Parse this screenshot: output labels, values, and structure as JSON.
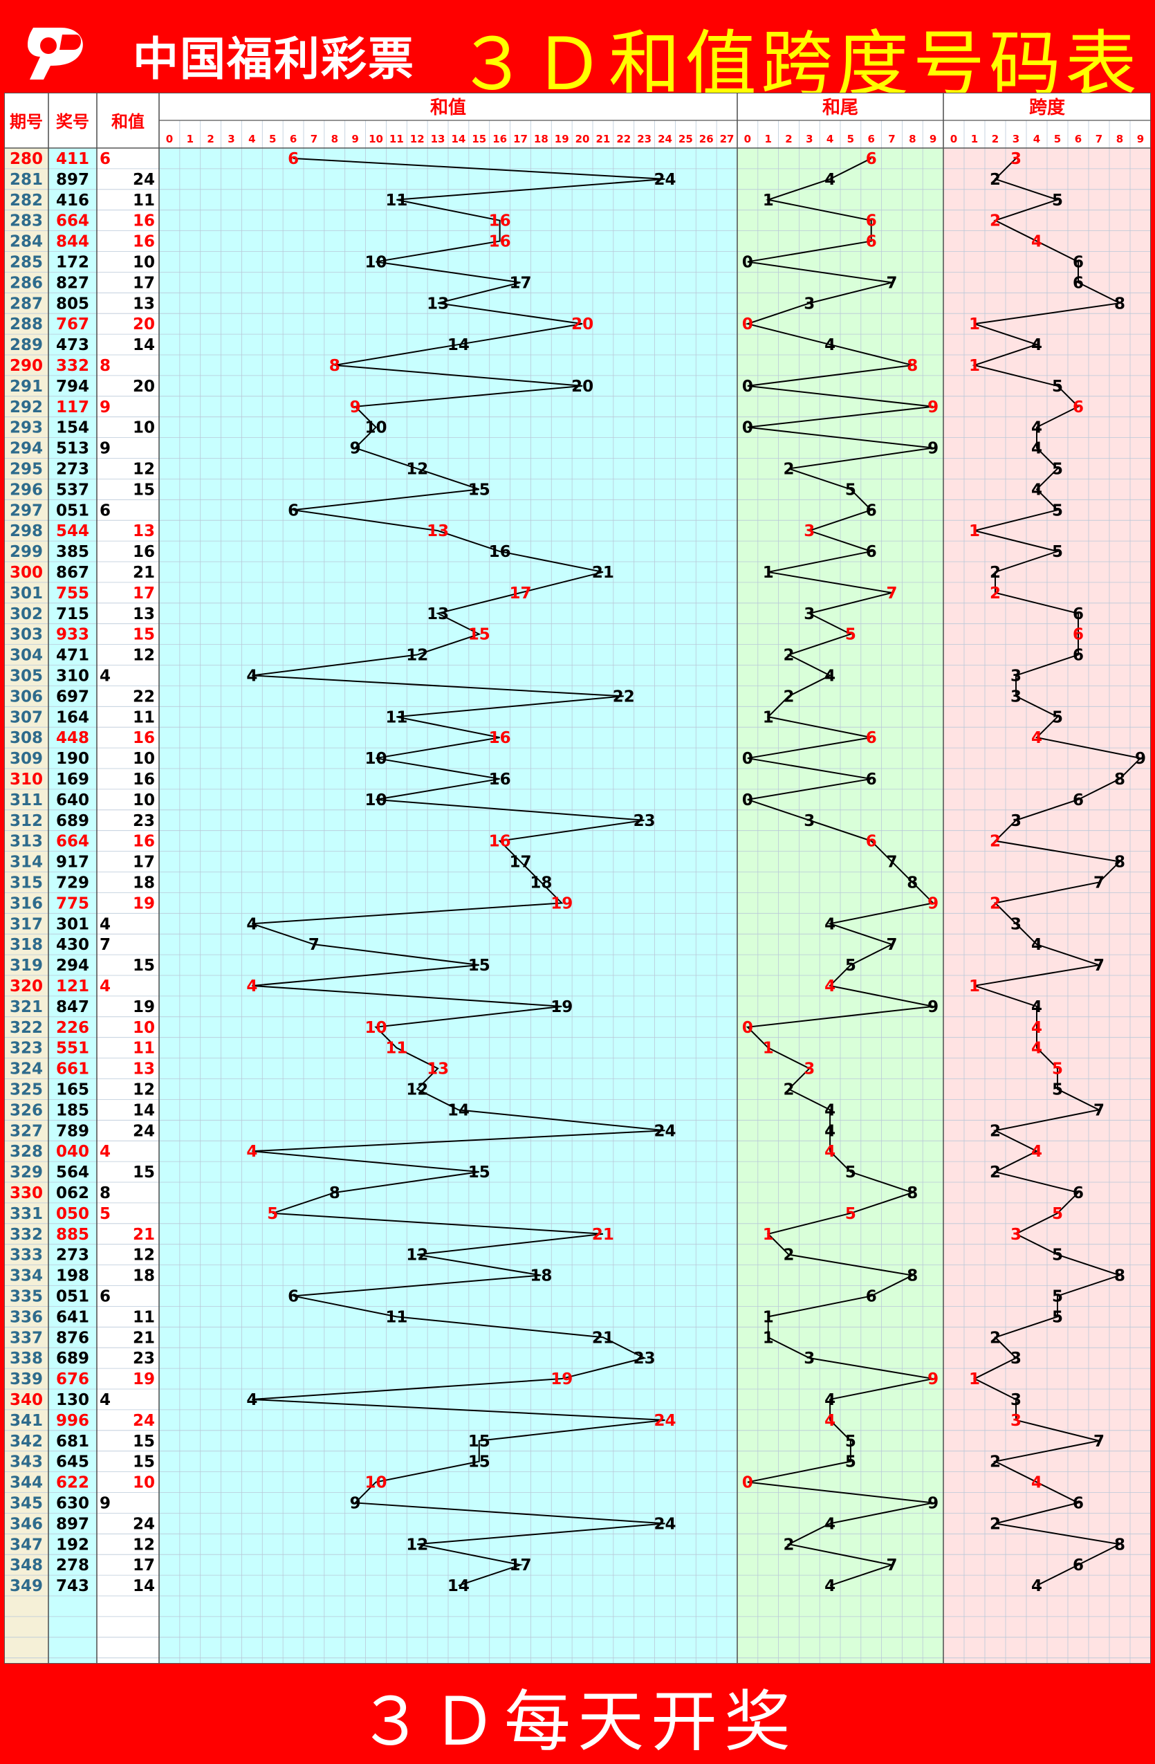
{
  "header": {
    "brand": "中国福利彩票",
    "title": "３Ｄ和值跨度号码表"
  },
  "footer": {
    "text": "３Ｄ每天开奖"
  },
  "colors": {
    "background": "#ff0000",
    "title": "#ffff00",
    "highlight": "#ff0000",
    "normal": "#000000",
    "issue_normal": "#2e6b8c",
    "zone_issue": "#f5f0d7",
    "zone_number": "#c8ffff",
    "zone_sum": "#c8ffff",
    "zone_tail": "#d9ffd9",
    "zone_span": "#ffe3e3"
  },
  "table": {
    "col_labels": [
      "期号",
      "奖号",
      "和值"
    ],
    "zone_labels": [
      "和值",
      "和尾",
      "跨度"
    ]
  },
  "chart_data": {
    "type": "table",
    "sum_range": [
      0,
      27
    ],
    "tail_range": [
      0,
      9
    ],
    "span_range": [
      0,
      9
    ],
    "sum_ticks": [
      "0",
      "1",
      "2",
      "3",
      "4",
      "5",
      "6",
      "7",
      "8",
      "9",
      "10",
      "11",
      "12",
      "13",
      "14",
      "15",
      "16",
      "17",
      "18",
      "19",
      "20",
      "21",
      "22",
      "23",
      "24",
      "25",
      "26",
      "27"
    ],
    "digit_ticks": [
      "0",
      "1",
      "2",
      "3",
      "4",
      "5",
      "6",
      "7",
      "8",
      "9"
    ],
    "rows": [
      {
        "issue": "280",
        "number": "411",
        "sum": "6",
        "tail": "6",
        "span": "3",
        "hot": true,
        "red_issue": true
      },
      {
        "issue": "281",
        "number": "897",
        "sum": "24",
        "tail": "4",
        "span": "2",
        "hot": false,
        "red_issue": false
      },
      {
        "issue": "282",
        "number": "416",
        "sum": "11",
        "tail": "1",
        "span": "5",
        "hot": false,
        "red_issue": false
      },
      {
        "issue": "283",
        "number": "664",
        "sum": "16",
        "tail": "6",
        "span": "2",
        "hot": true,
        "red_issue": false
      },
      {
        "issue": "284",
        "number": "844",
        "sum": "16",
        "tail": "6",
        "span": "4",
        "hot": true,
        "red_issue": false
      },
      {
        "issue": "285",
        "number": "172",
        "sum": "10",
        "tail": "0",
        "span": "6",
        "hot": false,
        "red_issue": false
      },
      {
        "issue": "286",
        "number": "827",
        "sum": "17",
        "tail": "7",
        "span": "6",
        "hot": false,
        "red_issue": false
      },
      {
        "issue": "287",
        "number": "805",
        "sum": "13",
        "tail": "3",
        "span": "8",
        "hot": false,
        "red_issue": false
      },
      {
        "issue": "288",
        "number": "767",
        "sum": "20",
        "tail": "0",
        "span": "1",
        "hot": true,
        "red_issue": false
      },
      {
        "issue": "289",
        "number": "473",
        "sum": "14",
        "tail": "4",
        "span": "4",
        "hot": false,
        "red_issue": false
      },
      {
        "issue": "290",
        "number": "332",
        "sum": "8",
        "tail": "8",
        "span": "1",
        "hot": true,
        "red_issue": true
      },
      {
        "issue": "291",
        "number": "794",
        "sum": "20",
        "tail": "0",
        "span": "5",
        "hot": false,
        "red_issue": false
      },
      {
        "issue": "292",
        "number": "117",
        "sum": "9",
        "tail": "9",
        "span": "6",
        "hot": true,
        "red_issue": false
      },
      {
        "issue": "293",
        "number": "154",
        "sum": "10",
        "tail": "0",
        "span": "4",
        "hot": false,
        "red_issue": false
      },
      {
        "issue": "294",
        "number": "513",
        "sum": "9",
        "tail": "9",
        "span": "4",
        "hot": false,
        "red_issue": false
      },
      {
        "issue": "295",
        "number": "273",
        "sum": "12",
        "tail": "2",
        "span": "5",
        "hot": false,
        "red_issue": false
      },
      {
        "issue": "296",
        "number": "537",
        "sum": "15",
        "tail": "5",
        "span": "4",
        "hot": false,
        "red_issue": false
      },
      {
        "issue": "297",
        "number": "051",
        "sum": "6",
        "tail": "6",
        "span": "5",
        "hot": false,
        "red_issue": false
      },
      {
        "issue": "298",
        "number": "544",
        "sum": "13",
        "tail": "3",
        "span": "1",
        "hot": true,
        "red_issue": false
      },
      {
        "issue": "299",
        "number": "385",
        "sum": "16",
        "tail": "6",
        "span": "5",
        "hot": false,
        "red_issue": false
      },
      {
        "issue": "300",
        "number": "867",
        "sum": "21",
        "tail": "1",
        "span": "2",
        "hot": false,
        "red_issue": true
      },
      {
        "issue": "301",
        "number": "755",
        "sum": "17",
        "tail": "7",
        "span": "2",
        "hot": true,
        "red_issue": false
      },
      {
        "issue": "302",
        "number": "715",
        "sum": "13",
        "tail": "3",
        "span": "6",
        "hot": false,
        "red_issue": false
      },
      {
        "issue": "303",
        "number": "933",
        "sum": "15",
        "tail": "5",
        "span": "6",
        "hot": true,
        "red_issue": false
      },
      {
        "issue": "304",
        "number": "471",
        "sum": "12",
        "tail": "2",
        "span": "6",
        "hot": false,
        "red_issue": false
      },
      {
        "issue": "305",
        "number": "310",
        "sum": "4",
        "tail": "4",
        "span": "3",
        "hot": false,
        "red_issue": false
      },
      {
        "issue": "306",
        "number": "697",
        "sum": "22",
        "tail": "2",
        "span": "3",
        "hot": false,
        "red_issue": false
      },
      {
        "issue": "307",
        "number": "164",
        "sum": "11",
        "tail": "1",
        "span": "5",
        "hot": false,
        "red_issue": false
      },
      {
        "issue": "308",
        "number": "448",
        "sum": "16",
        "tail": "6",
        "span": "4",
        "hot": true,
        "red_issue": false
      },
      {
        "issue": "309",
        "number": "190",
        "sum": "10",
        "tail": "0",
        "span": "9",
        "hot": false,
        "red_issue": false
      },
      {
        "issue": "310",
        "number": "169",
        "sum": "16",
        "tail": "6",
        "span": "8",
        "hot": false,
        "red_issue": true
      },
      {
        "issue": "311",
        "number": "640",
        "sum": "10",
        "tail": "0",
        "span": "6",
        "hot": false,
        "red_issue": false
      },
      {
        "issue": "312",
        "number": "689",
        "sum": "23",
        "tail": "3",
        "span": "3",
        "hot": false,
        "red_issue": false
      },
      {
        "issue": "313",
        "number": "664",
        "sum": "16",
        "tail": "6",
        "span": "2",
        "hot": true,
        "red_issue": false
      },
      {
        "issue": "314",
        "number": "917",
        "sum": "17",
        "tail": "7",
        "span": "8",
        "hot": false,
        "red_issue": false
      },
      {
        "issue": "315",
        "number": "729",
        "sum": "18",
        "tail": "8",
        "span": "7",
        "hot": false,
        "red_issue": false
      },
      {
        "issue": "316",
        "number": "775",
        "sum": "19",
        "tail": "9",
        "span": "2",
        "hot": true,
        "red_issue": false
      },
      {
        "issue": "317",
        "number": "301",
        "sum": "4",
        "tail": "4",
        "span": "3",
        "hot": false,
        "red_issue": false
      },
      {
        "issue": "318",
        "number": "430",
        "sum": "7",
        "tail": "7",
        "span": "4",
        "hot": false,
        "red_issue": false
      },
      {
        "issue": "319",
        "number": "294",
        "sum": "15",
        "tail": "5",
        "span": "7",
        "hot": false,
        "red_issue": false
      },
      {
        "issue": "320",
        "number": "121",
        "sum": "4",
        "tail": "4",
        "span": "1",
        "hot": true,
        "red_issue": true
      },
      {
        "issue": "321",
        "number": "847",
        "sum": "19",
        "tail": "9",
        "span": "4",
        "hot": false,
        "red_issue": false
      },
      {
        "issue": "322",
        "number": "226",
        "sum": "10",
        "tail": "0",
        "span": "4",
        "hot": true,
        "red_issue": false
      },
      {
        "issue": "323",
        "number": "551",
        "sum": "11",
        "tail": "1",
        "span": "4",
        "hot": true,
        "red_issue": false
      },
      {
        "issue": "324",
        "number": "661",
        "sum": "13",
        "tail": "3",
        "span": "5",
        "hot": true,
        "red_issue": false
      },
      {
        "issue": "325",
        "number": "165",
        "sum": "12",
        "tail": "2",
        "span": "5",
        "hot": false,
        "red_issue": false
      },
      {
        "issue": "326",
        "number": "185",
        "sum": "14",
        "tail": "4",
        "span": "7",
        "hot": false,
        "red_issue": false
      },
      {
        "issue": "327",
        "number": "789",
        "sum": "24",
        "tail": "4",
        "span": "2",
        "hot": false,
        "red_issue": false
      },
      {
        "issue": "328",
        "number": "040",
        "sum": "4",
        "tail": "4",
        "span": "4",
        "hot": true,
        "red_issue": false
      },
      {
        "issue": "329",
        "number": "564",
        "sum": "15",
        "tail": "5",
        "span": "2",
        "hot": false,
        "red_issue": false
      },
      {
        "issue": "330",
        "number": "062",
        "sum": "8",
        "tail": "8",
        "span": "6",
        "hot": false,
        "red_issue": true
      },
      {
        "issue": "331",
        "number": "050",
        "sum": "5",
        "tail": "5",
        "span": "5",
        "hot": true,
        "red_issue": false
      },
      {
        "issue": "332",
        "number": "885",
        "sum": "21",
        "tail": "1",
        "span": "3",
        "hot": true,
        "red_issue": false
      },
      {
        "issue": "333",
        "number": "273",
        "sum": "12",
        "tail": "2",
        "span": "5",
        "hot": false,
        "red_issue": false
      },
      {
        "issue": "334",
        "number": "198",
        "sum": "18",
        "tail": "8",
        "span": "8",
        "hot": false,
        "red_issue": false
      },
      {
        "issue": "335",
        "number": "051",
        "sum": "6",
        "tail": "6",
        "span": "5",
        "hot": false,
        "red_issue": false
      },
      {
        "issue": "336",
        "number": "641",
        "sum": "11",
        "tail": "1",
        "span": "5",
        "hot": false,
        "red_issue": false
      },
      {
        "issue": "337",
        "number": "876",
        "sum": "21",
        "tail": "1",
        "span": "2",
        "hot": false,
        "red_issue": false
      },
      {
        "issue": "338",
        "number": "689",
        "sum": "23",
        "tail": "3",
        "span": "3",
        "hot": false,
        "red_issue": false
      },
      {
        "issue": "339",
        "number": "676",
        "sum": "19",
        "tail": "9",
        "span": "1",
        "hot": true,
        "red_issue": false
      },
      {
        "issue": "340",
        "number": "130",
        "sum": "4",
        "tail": "4",
        "span": "3",
        "hot": false,
        "red_issue": true
      },
      {
        "issue": "341",
        "number": "996",
        "sum": "24",
        "tail": "4",
        "span": "3",
        "hot": true,
        "red_issue": false
      },
      {
        "issue": "342",
        "number": "681",
        "sum": "15",
        "tail": "5",
        "span": "7",
        "hot": false,
        "red_issue": false
      },
      {
        "issue": "343",
        "number": "645",
        "sum": "15",
        "tail": "5",
        "span": "2",
        "hot": false,
        "red_issue": false
      },
      {
        "issue": "344",
        "number": "622",
        "sum": "10",
        "tail": "0",
        "span": "4",
        "hot": true,
        "red_issue": false
      },
      {
        "issue": "345",
        "number": "630",
        "sum": "9",
        "tail": "9",
        "span": "6",
        "hot": false,
        "red_issue": false
      },
      {
        "issue": "346",
        "number": "897",
        "sum": "24",
        "tail": "4",
        "span": "2",
        "hot": false,
        "red_issue": false
      },
      {
        "issue": "347",
        "number": "192",
        "sum": "12",
        "tail": "2",
        "span": "8",
        "hot": false,
        "red_issue": false
      },
      {
        "issue": "348",
        "number": "278",
        "sum": "17",
        "tail": "7",
        "span": "6",
        "hot": false,
        "red_issue": false
      },
      {
        "issue": "349",
        "number": "743",
        "sum": "14",
        "tail": "4",
        "span": "4",
        "hot": false,
        "red_issue": false
      }
    ]
  }
}
